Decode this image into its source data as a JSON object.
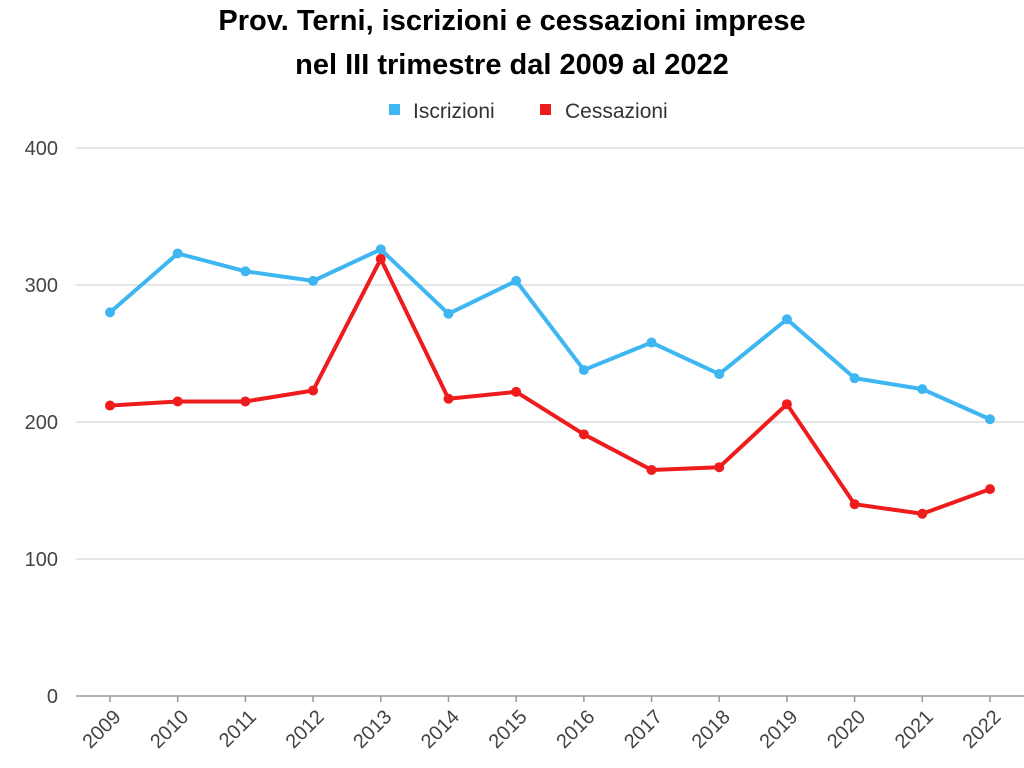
{
  "chart_data": {
    "type": "line",
    "title_lines": [
      "Prov. Terni, iscrizioni e cessazioni imprese",
      "nel III trimestre dal 2009 al 2022"
    ],
    "x": [
      "2009",
      "2010",
      "2011",
      "2012",
      "2013",
      "2014",
      "2015",
      "2016",
      "2017",
      "2018",
      "2019",
      "2020",
      "2021",
      "2022"
    ],
    "series": [
      {
        "name": "Iscrizioni",
        "color": "#3db6f2",
        "values": [
          280,
          323,
          310,
          303,
          326,
          279,
          303,
          238,
          258,
          235,
          275,
          232,
          224,
          202
        ]
      },
      {
        "name": "Cessazioni",
        "color": "#ee1c1c",
        "values": [
          212,
          215,
          215,
          223,
          319,
          217,
          222,
          191,
          165,
          167,
          213,
          140,
          133,
          151
        ]
      }
    ],
    "ylim": [
      0,
      400
    ],
    "yticks": [
      0,
      100,
      200,
      300,
      400
    ],
    "grid": true,
    "legend_position": "top-center"
  }
}
